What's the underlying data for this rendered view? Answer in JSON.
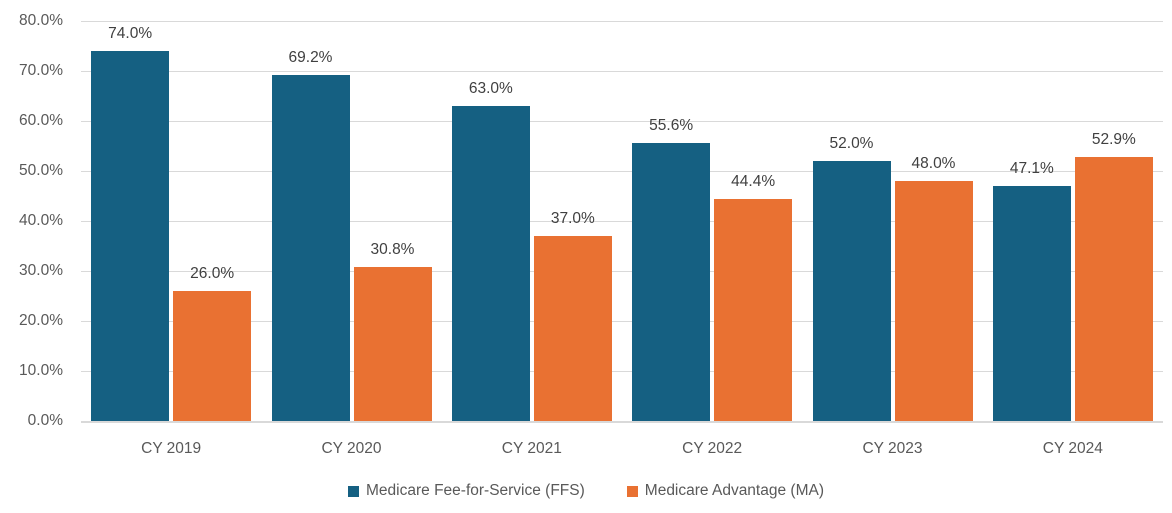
{
  "chart_data": {
    "type": "bar",
    "title": "",
    "xlabel": "",
    "ylabel": "",
    "categories": [
      "CY 2019",
      "CY 2020",
      "CY 2021",
      "CY 2022",
      "CY 2023",
      "CY 2024"
    ],
    "series": [
      {
        "name": "Medicare Fee-for-Service (FFS)",
        "color": "#156082",
        "values": [
          74.0,
          69.2,
          63.0,
          55.6,
          52.0,
          47.1
        ],
        "labels": [
          "74.0%",
          "69.2%",
          "63.0%",
          "55.6%",
          "52.0%",
          "47.1%"
        ]
      },
      {
        "name": "Medicare Advantage (MA)",
        "color": "#E97132",
        "values": [
          26.0,
          30.8,
          37.0,
          44.4,
          48.0,
          52.9
        ],
        "labels": [
          "26.0%",
          "30.8%",
          "37.0%",
          "44.4%",
          "48.0%",
          "52.9%"
        ]
      }
    ],
    "ylim": [
      0,
      80
    ],
    "y_tick_step": 10,
    "y_tick_labels": [
      "0.0%",
      "10.0%",
      "20.0%",
      "30.0%",
      "40.0%",
      "50.0%",
      "60.0%",
      "70.0%",
      "80.0%"
    ],
    "grid": true,
    "legend_position": "bottom",
    "colors": {
      "gridline": "#D9D9D9",
      "axis_line": "#D9D9D9",
      "tick_label": "#595959",
      "data_label": "#404040",
      "legend_text": "#595959",
      "background": "#FFFFFF"
    }
  }
}
